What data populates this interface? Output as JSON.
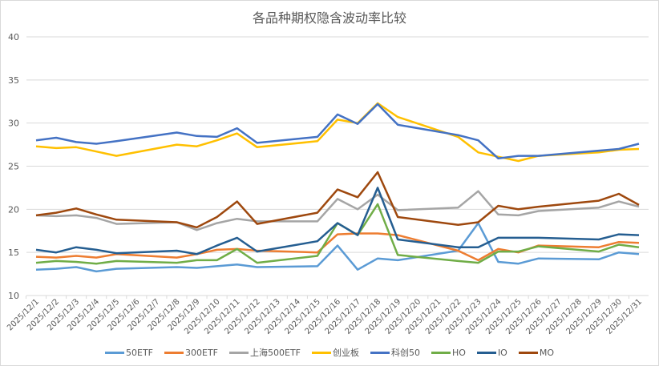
{
  "chart_data": {
    "type": "line",
    "title": "各品种期权隐含波动率比较",
    "xlabel": "",
    "ylabel": "",
    "ylim": [
      10,
      40
    ],
    "yticks": [
      10,
      15,
      20,
      25,
      30,
      35,
      40
    ],
    "grid": true,
    "legend_position": "bottom",
    "categories": [
      "2025/12/1",
      "2025/12/2",
      "2025/12/3",
      "2025/12/4",
      "2025/12/5",
      "2025/12/6",
      "2025/12/7",
      "2025/12/8",
      "2025/12/9",
      "2025/12/10",
      "2025/12/11",
      "2025/12/12",
      "2025/12/13",
      "2025/12/14",
      "2025/12/15",
      "2025/12/16",
      "2025/12/17",
      "2025/12/18",
      "2025/12/19",
      "2025/12/20",
      "2025/12/21",
      "2025/12/22",
      "2025/12/23",
      "2025/12/24",
      "2025/12/25",
      "2025/12/26",
      "2025/12/27",
      "2025/12/28",
      "2025/12/29",
      "2025/12/30",
      "2025/12/31"
    ],
    "series": [
      {
        "name": "50ETF",
        "color": "#5B9BD5",
        "values": [
          13.0,
          13.1,
          13.3,
          12.8,
          13.1,
          null,
          null,
          13.3,
          13.2,
          13.4,
          13.6,
          13.3,
          null,
          null,
          13.4,
          15.8,
          13.0,
          14.3,
          14.1,
          null,
          null,
          15.2,
          18.4,
          13.9,
          13.7,
          14.3,
          null,
          null,
          14.2,
          15.0,
          14.8
        ]
      },
      {
        "name": "300ETF",
        "color": "#ED7D31",
        "values": [
          14.5,
          14.4,
          14.6,
          14.4,
          14.8,
          null,
          null,
          14.4,
          14.8,
          15.3,
          15.4,
          15.2,
          null,
          null,
          15.0,
          17.1,
          17.2,
          17.2,
          17.0,
          null,
          null,
          15.2,
          14.1,
          15.4,
          15.0,
          15.8,
          null,
          null,
          15.6,
          16.2,
          16.1
        ]
      },
      {
        "name": "上海500ETF",
        "color": "#A5A5A5",
        "values": [
          19.3,
          19.2,
          19.3,
          19.0,
          18.3,
          null,
          null,
          18.5,
          17.6,
          18.4,
          18.9,
          18.6,
          null,
          null,
          18.6,
          21.2,
          20.0,
          21.7,
          19.9,
          null,
          null,
          20.2,
          22.1,
          19.4,
          19.3,
          19.8,
          null,
          null,
          20.2,
          20.9,
          20.3
        ]
      },
      {
        "name": "创业板",
        "color": "#FFC000",
        "values": [
          27.3,
          27.1,
          27.2,
          26.7,
          26.2,
          null,
          null,
          27.5,
          27.3,
          28.0,
          28.8,
          27.2,
          null,
          null,
          27.9,
          30.4,
          30.0,
          32.3,
          30.7,
          null,
          null,
          28.4,
          26.6,
          26.1,
          25.6,
          26.2,
          null,
          null,
          26.6,
          26.9,
          27.0
        ]
      },
      {
        "name": "科创50",
        "color": "#4472C4",
        "values": [
          28.0,
          28.3,
          27.8,
          27.6,
          27.9,
          null,
          null,
          28.9,
          28.5,
          28.4,
          29.4,
          27.7,
          null,
          null,
          28.4,
          31.0,
          29.9,
          32.2,
          29.8,
          null,
          null,
          28.6,
          28.0,
          25.9,
          26.2,
          26.2,
          null,
          null,
          26.8,
          27.0,
          27.6
        ]
      },
      {
        "name": "HO",
        "color": "#70AD47",
        "values": [
          13.8,
          14.0,
          13.9,
          13.7,
          14.0,
          null,
          null,
          13.8,
          14.1,
          14.1,
          15.4,
          13.8,
          null,
          null,
          14.6,
          18.4,
          17.0,
          20.6,
          14.7,
          null,
          null,
          14.0,
          13.8,
          15.1,
          15.1,
          15.7,
          null,
          null,
          15.1,
          15.9,
          15.6
        ]
      },
      {
        "name": "IO",
        "color": "#255E91",
        "values": [
          15.3,
          15.0,
          15.6,
          15.3,
          14.9,
          null,
          null,
          15.2,
          14.8,
          15.8,
          16.7,
          15.1,
          null,
          null,
          16.3,
          18.4,
          17.0,
          22.5,
          16.5,
          null,
          null,
          15.6,
          15.6,
          16.7,
          16.7,
          16.7,
          null,
          null,
          16.5,
          17.1,
          17.0
        ]
      },
      {
        "name": "MO",
        "color": "#9E480E",
        "values": [
          19.3,
          19.6,
          20.1,
          19.4,
          18.8,
          null,
          null,
          18.5,
          17.9,
          19.1,
          20.9,
          18.3,
          null,
          null,
          19.6,
          22.3,
          21.4,
          24.3,
          19.1,
          null,
          null,
          18.2,
          18.5,
          20.4,
          20.0,
          20.3,
          null,
          null,
          21.0,
          21.8,
          20.5
        ]
      }
    ]
  }
}
